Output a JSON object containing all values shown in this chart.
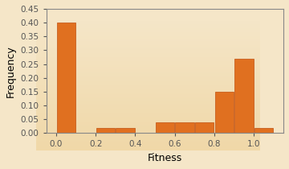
{
  "bar_lefts": [
    0.0,
    0.1,
    0.2,
    0.3,
    0.4,
    0.5,
    0.6,
    0.7,
    0.8,
    0.9,
    1.0,
    1.1
  ],
  "bar_heights": [
    0.4,
    0.0,
    0.02,
    0.02,
    0.0,
    0.04,
    0.04,
    0.04,
    0.15,
    0.27,
    0.02,
    0.0
  ],
  "bar_width": 0.1,
  "bar_color": "#E07020",
  "bar_edgecolor": "#C05010",
  "xlim": [
    -0.05,
    1.15
  ],
  "ylim": [
    0,
    0.45
  ],
  "xticks": [
    0,
    0.2,
    0.4,
    0.6,
    0.8,
    1.0
  ],
  "yticks": [
    0,
    0.05,
    0.1,
    0.15,
    0.2,
    0.25,
    0.3,
    0.35,
    0.4,
    0.45
  ],
  "xlabel": "Fitness",
  "ylabel": "Frequency",
  "bg_color_top": "#F5E6C8",
  "bg_color_bottom": "#F0D8A8",
  "title": ""
}
